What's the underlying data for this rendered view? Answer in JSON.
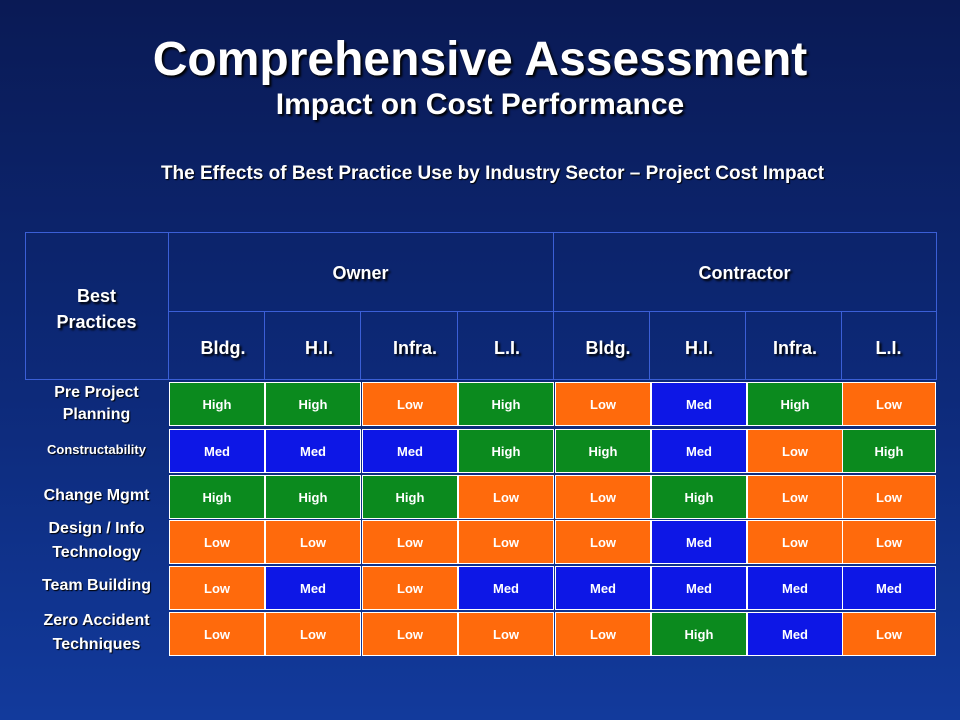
{
  "title": "Comprehensive Assessment",
  "subtitle": "Impact on Cost Performance",
  "caption": "The Effects of Best Practice Use by Industry Sector – Project Cost Impact",
  "header": {
    "best_line1": "Best",
    "best_line2": "Practices",
    "owner": "Owner",
    "contractor": "Contractor",
    "columns": [
      "Bldg.",
      "H.I.",
      "Infra.",
      "L.I.",
      "Bldg.",
      "H.I.",
      "Infra.",
      "L.I."
    ]
  },
  "colors": {
    "High": "#0b8a1e",
    "Med": "#0d17e6",
    "Low": "#ff6a0c"
  },
  "rows": [
    {
      "label_line1": "Pre Project",
      "label_line2": "Planning",
      "values": [
        "High",
        "High",
        "Low",
        "High",
        "Low",
        "Med",
        "High",
        "Low"
      ]
    },
    {
      "label_line1": "Constructability",
      "label_line2": "",
      "values": [
        "Med",
        "Med",
        "Med",
        "High",
        "High",
        "Med",
        "Low",
        "High"
      ]
    },
    {
      "label_line1": "Change Mgmt",
      "label_line2": "",
      "values": [
        "High",
        "High",
        "High",
        "Low",
        "Low",
        "High",
        "Low",
        "Low"
      ]
    },
    {
      "label_line1": "Design / Info",
      "label_line2": "Technology",
      "values": [
        "Low",
        "Low",
        "Low",
        "Low",
        "Low",
        "Med",
        "Low",
        "Low"
      ]
    },
    {
      "label_line1": "Team Building",
      "label_line2": "",
      "values": [
        "Low",
        "Med",
        "Low",
        "Med",
        "Med",
        "Med",
        "Med",
        "Med"
      ]
    },
    {
      "label_line1": "Zero Accident",
      "label_line2": "Techniques",
      "values": [
        "Low",
        "Low",
        "Low",
        "Low",
        "Low",
        "High",
        "Med",
        "Low"
      ]
    }
  ]
}
